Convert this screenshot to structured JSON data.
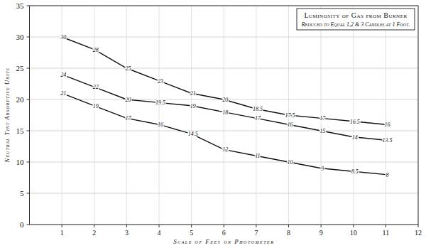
{
  "chart_data": {
    "type": "line",
    "title": "Luminosity of Gas from Burner",
    "subtitle": "Reduced to Equal 1,2 & 3 Candles at 1 Foot.",
    "x_label": "Scale of Feet on Photometer",
    "y_label": "Neutral Tint Absorptive Units",
    "x": [
      1,
      2,
      3,
      4,
      5,
      6,
      7,
      8,
      9,
      10,
      11
    ],
    "series": [
      {
        "color": "#111111",
        "values": [
          30,
          28,
          25,
          23,
          21,
          20,
          18.5,
          17.5,
          17,
          16.5,
          16
        ]
      },
      {
        "color": "#111111",
        "values": [
          24,
          22,
          20,
          19.5,
          19,
          18,
          17,
          16,
          15,
          14,
          13.5
        ]
      },
      {
        "color": "#111111",
        "values": [
          21,
          19,
          17,
          16,
          14.5,
          12,
          11,
          10,
          9,
          8.5,
          8
        ]
      }
    ],
    "xlim": [
      0,
      12
    ],
    "xticks": [
      1,
      2,
      3,
      4,
      5,
      6,
      7,
      8,
      9,
      10,
      11,
      12
    ],
    "ylim": [
      0,
      35
    ],
    "yticks": [
      0,
      5,
      10,
      15,
      20,
      25,
      30,
      35
    ],
    "grid": true,
    "data_labels": true
  }
}
